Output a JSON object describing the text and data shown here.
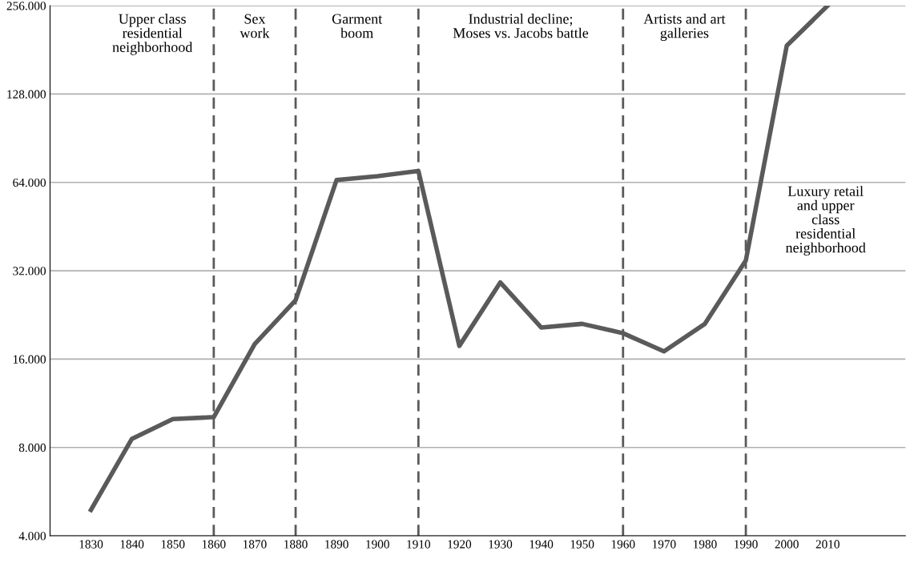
{
  "chart_data": {
    "type": "line",
    "x": [
      1830,
      1840,
      1850,
      1860,
      1870,
      1880,
      1890,
      1900,
      1910,
      1920,
      1930,
      1940,
      1950,
      1960,
      1970,
      1980,
      1990,
      2000,
      2010
    ],
    "series": [
      {
        "color": "#5a5a5a",
        "values": [
          4900,
          8560,
          10000,
          10150,
          18000,
          25400,
          65200,
          67200,
          70000,
          17750,
          29200,
          20500,
          21100,
          19600,
          17000,
          21100,
          34700,
          187000,
          256000
        ]
      }
    ],
    "log": true,
    "xlim": [
      1820,
      2029
    ],
    "xticks": [
      1830,
      1840,
      1850,
      1860,
      1870,
      1880,
      1890,
      1900,
      1910,
      1920,
      1930,
      1940,
      1950,
      1960,
      1970,
      1980,
      1990,
      2000,
      2010
    ],
    "ylim": [
      4000,
      256000
    ],
    "yticks": [
      {
        "value": 4000,
        "label": "4.000"
      },
      {
        "value": 8000,
        "label": "8.000"
      },
      {
        "value": 16000,
        "label": "16.000"
      },
      {
        "value": 32000,
        "label": "32.000"
      },
      {
        "value": 64000,
        "label": "64.000"
      },
      {
        "value": 128000,
        "label": "128.000"
      },
      {
        "value": 256000,
        "label": "256.000"
      }
    ],
    "grid": "y",
    "marker": "none",
    "line_style": "solid",
    "ref_lines": [
      {
        "axis": "x",
        "value": 1860,
        "color": "#5a5a5a",
        "line_style": "dashed"
      },
      {
        "axis": "x",
        "value": 1880,
        "color": "#5a5a5a",
        "line_style": "dashed"
      },
      {
        "axis": "x",
        "value": 1910,
        "color": "#5a5a5a",
        "line_style": "dashed"
      },
      {
        "axis": "x",
        "value": 1960,
        "color": "#5a5a5a",
        "line_style": "dashed"
      },
      {
        "axis": "x",
        "value": 1990,
        "color": "#5a5a5a",
        "line_style": "dashed"
      }
    ],
    "annotations": [
      "Upper class\nresidential\nneighborhood",
      "Sex\nwork",
      "Garment\nboom",
      "Industrial decline;\nMoses vs. Jacobs battle",
      "Artists and art\ngalleries",
      "Luxury retail\nand upper\nclass\nresidential\nneighborhood"
    ]
  }
}
